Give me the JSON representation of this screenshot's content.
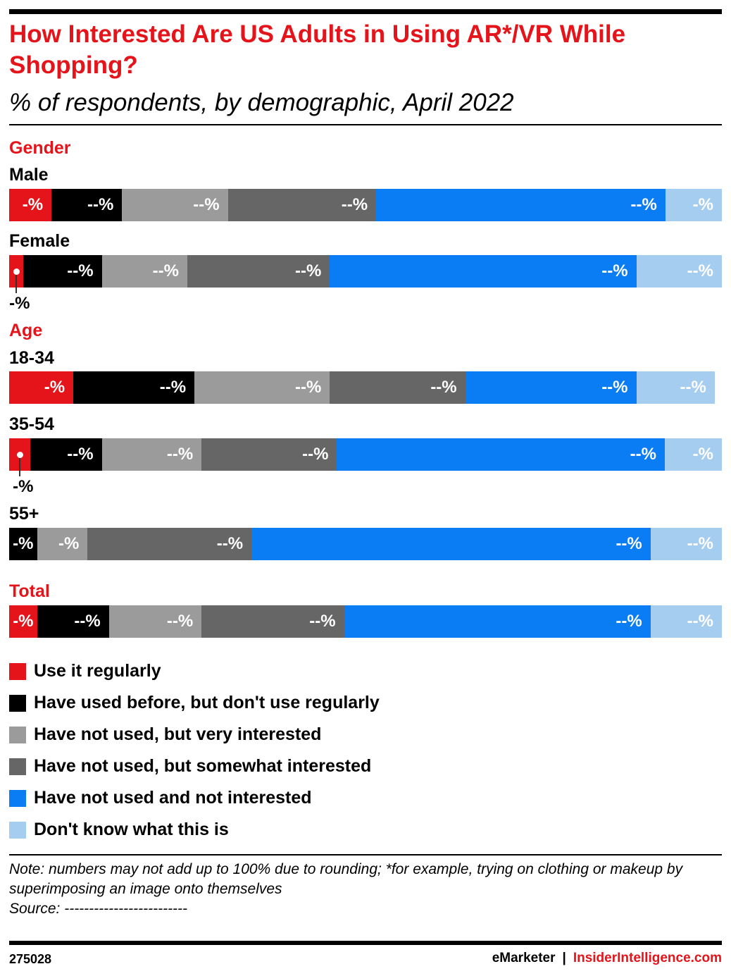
{
  "title": "How Interested Are US Adults in Using AR*/VR While Shopping?",
  "subtitle": "% of respondents, by demographic, April 2022",
  "colors": {
    "red": "#e5141b",
    "black": "#000000",
    "light_gray": "#9b9b9b",
    "dark_gray": "#666666",
    "blue": "#0a7df5",
    "light_blue": "#a5cdef"
  },
  "chart_data": {
    "type": "bar",
    "stacked": true,
    "orientation": "horizontal",
    "title": "How Interested Are US Adults in Using AR*/VR While Shopping?",
    "subtitle": "% of respondents, by demographic, April 2022",
    "groups": [
      "Gender",
      "Age",
      "Total"
    ],
    "categories": [
      "Male",
      "Female",
      "18-34",
      "35-54",
      "55+",
      "Total"
    ],
    "category_groups": [
      "Gender",
      "Gender",
      "Age",
      "Age",
      "Age",
      "Total"
    ],
    "series": [
      {
        "name": "Use it regularly",
        "color": "#e5141b",
        "values": [
          6,
          2,
          9,
          3,
          0,
          4
        ],
        "labels": [
          "-%",
          "-%",
          "-%",
          "-%",
          "",
          "-%"
        ]
      },
      {
        "name": "Have used before, but don't use regularly",
        "color": "#000000",
        "values": [
          10,
          11,
          17,
          10,
          4,
          10
        ],
        "labels": [
          "--%",
          "--%",
          "--%",
          "--%",
          "-%",
          "--%"
        ]
      },
      {
        "name": "Have not used, but very interested",
        "color": "#9b9b9b",
        "values": [
          15,
          12,
          19,
          14,
          7,
          13
        ],
        "labels": [
          "--%",
          "--%",
          "--%",
          "--%",
          "-%",
          "--%"
        ]
      },
      {
        "name": "Have not used, but somewhat interested",
        "color": "#666666",
        "values": [
          21,
          20,
          19,
          19,
          23,
          20
        ],
        "labels": [
          "--%",
          "--%",
          "--%",
          "--%",
          "--%",
          "--%"
        ]
      },
      {
        "name": "Have not used and not interested",
        "color": "#0a7df5",
        "values": [
          41,
          43,
          24,
          46,
          56,
          43
        ],
        "labels": [
          "--%",
          "--%",
          "--%",
          "--%",
          "--%",
          "--%"
        ]
      },
      {
        "name": "Don't know what this is",
        "color": "#a5cdef",
        "values": [
          8,
          12,
          11,
          8,
          10,
          10
        ],
        "labels": [
          "-%",
          "--%",
          "--%",
          "-%",
          "--%",
          "--%"
        ]
      }
    ],
    "callouts": [
      {
        "category": "Female",
        "series": "Use it regularly",
        "label": "-%"
      },
      {
        "category": "35-54",
        "series": "Use it regularly",
        "label": "-%"
      }
    ],
    "xlim": [
      0,
      100
    ],
    "legend": "bottom"
  },
  "note": "Note: numbers may not add up to 100% due to rounding; *for example, trying on clothing or makeup by superimposing an image onto themselves",
  "source": "Source: -------------------------",
  "footer": {
    "chart_id": "275028",
    "brand": "eMarketer",
    "separator": "|",
    "site": "InsiderIntelligence.com"
  }
}
